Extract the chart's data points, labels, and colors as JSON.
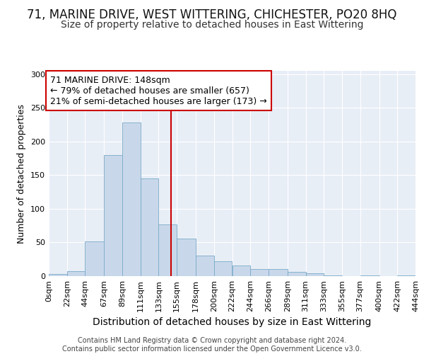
{
  "title1": "71, MARINE DRIVE, WEST WITTERING, CHICHESTER, PO20 8HQ",
  "title2": "Size of property relative to detached houses in East Wittering",
  "xlabel": "Distribution of detached houses by size in East Wittering",
  "ylabel": "Number of detached properties",
  "bar_color": "#c8d8ea",
  "bar_edge_color": "#7aaac8",
  "bins": [
    0,
    22,
    44,
    67,
    89,
    111,
    133,
    155,
    178,
    200,
    222,
    244,
    266,
    289,
    311,
    333,
    355,
    377,
    400,
    422,
    444
  ],
  "bin_labels": [
    "0sqm",
    "22sqm",
    "44sqm",
    "67sqm",
    "89sqm",
    "111sqm",
    "133sqm",
    "155sqm",
    "178sqm",
    "200sqm",
    "222sqm",
    "244sqm",
    "266sqm",
    "289sqm",
    "311sqm",
    "333sqm",
    "355sqm",
    "377sqm",
    "400sqm",
    "422sqm",
    "444sqm"
  ],
  "counts": [
    3,
    7,
    52,
    180,
    228,
    145,
    77,
    56,
    31,
    22,
    16,
    10,
    10,
    6,
    4,
    1,
    0,
    1,
    0,
    1
  ],
  "property_size": 148,
  "vline_color": "#cc0000",
  "annotation_line1": "71 MARINE DRIVE: 148sqm",
  "annotation_line2": "← 79% of detached houses are smaller (657)",
  "annotation_line3": "21% of semi-detached houses are larger (173) →",
  "annotation_box_color": "#ffffff",
  "annotation_box_edge_color": "#cc0000",
  "ylim": [
    0,
    305
  ],
  "yticks": [
    0,
    50,
    100,
    150,
    200,
    250,
    300
  ],
  "footer_text": "Contains HM Land Registry data © Crown copyright and database right 2024.\nContains public sector information licensed under the Open Government Licence v3.0.",
  "background_color": "#e8eef6",
  "fig_background_color": "#ffffff",
  "grid_color": "#ffffff",
  "title1_fontsize": 12,
  "title2_fontsize": 10,
  "xlabel_fontsize": 10,
  "ylabel_fontsize": 9,
  "tick_fontsize": 8,
  "annotation_fontsize": 9,
  "footer_fontsize": 7
}
